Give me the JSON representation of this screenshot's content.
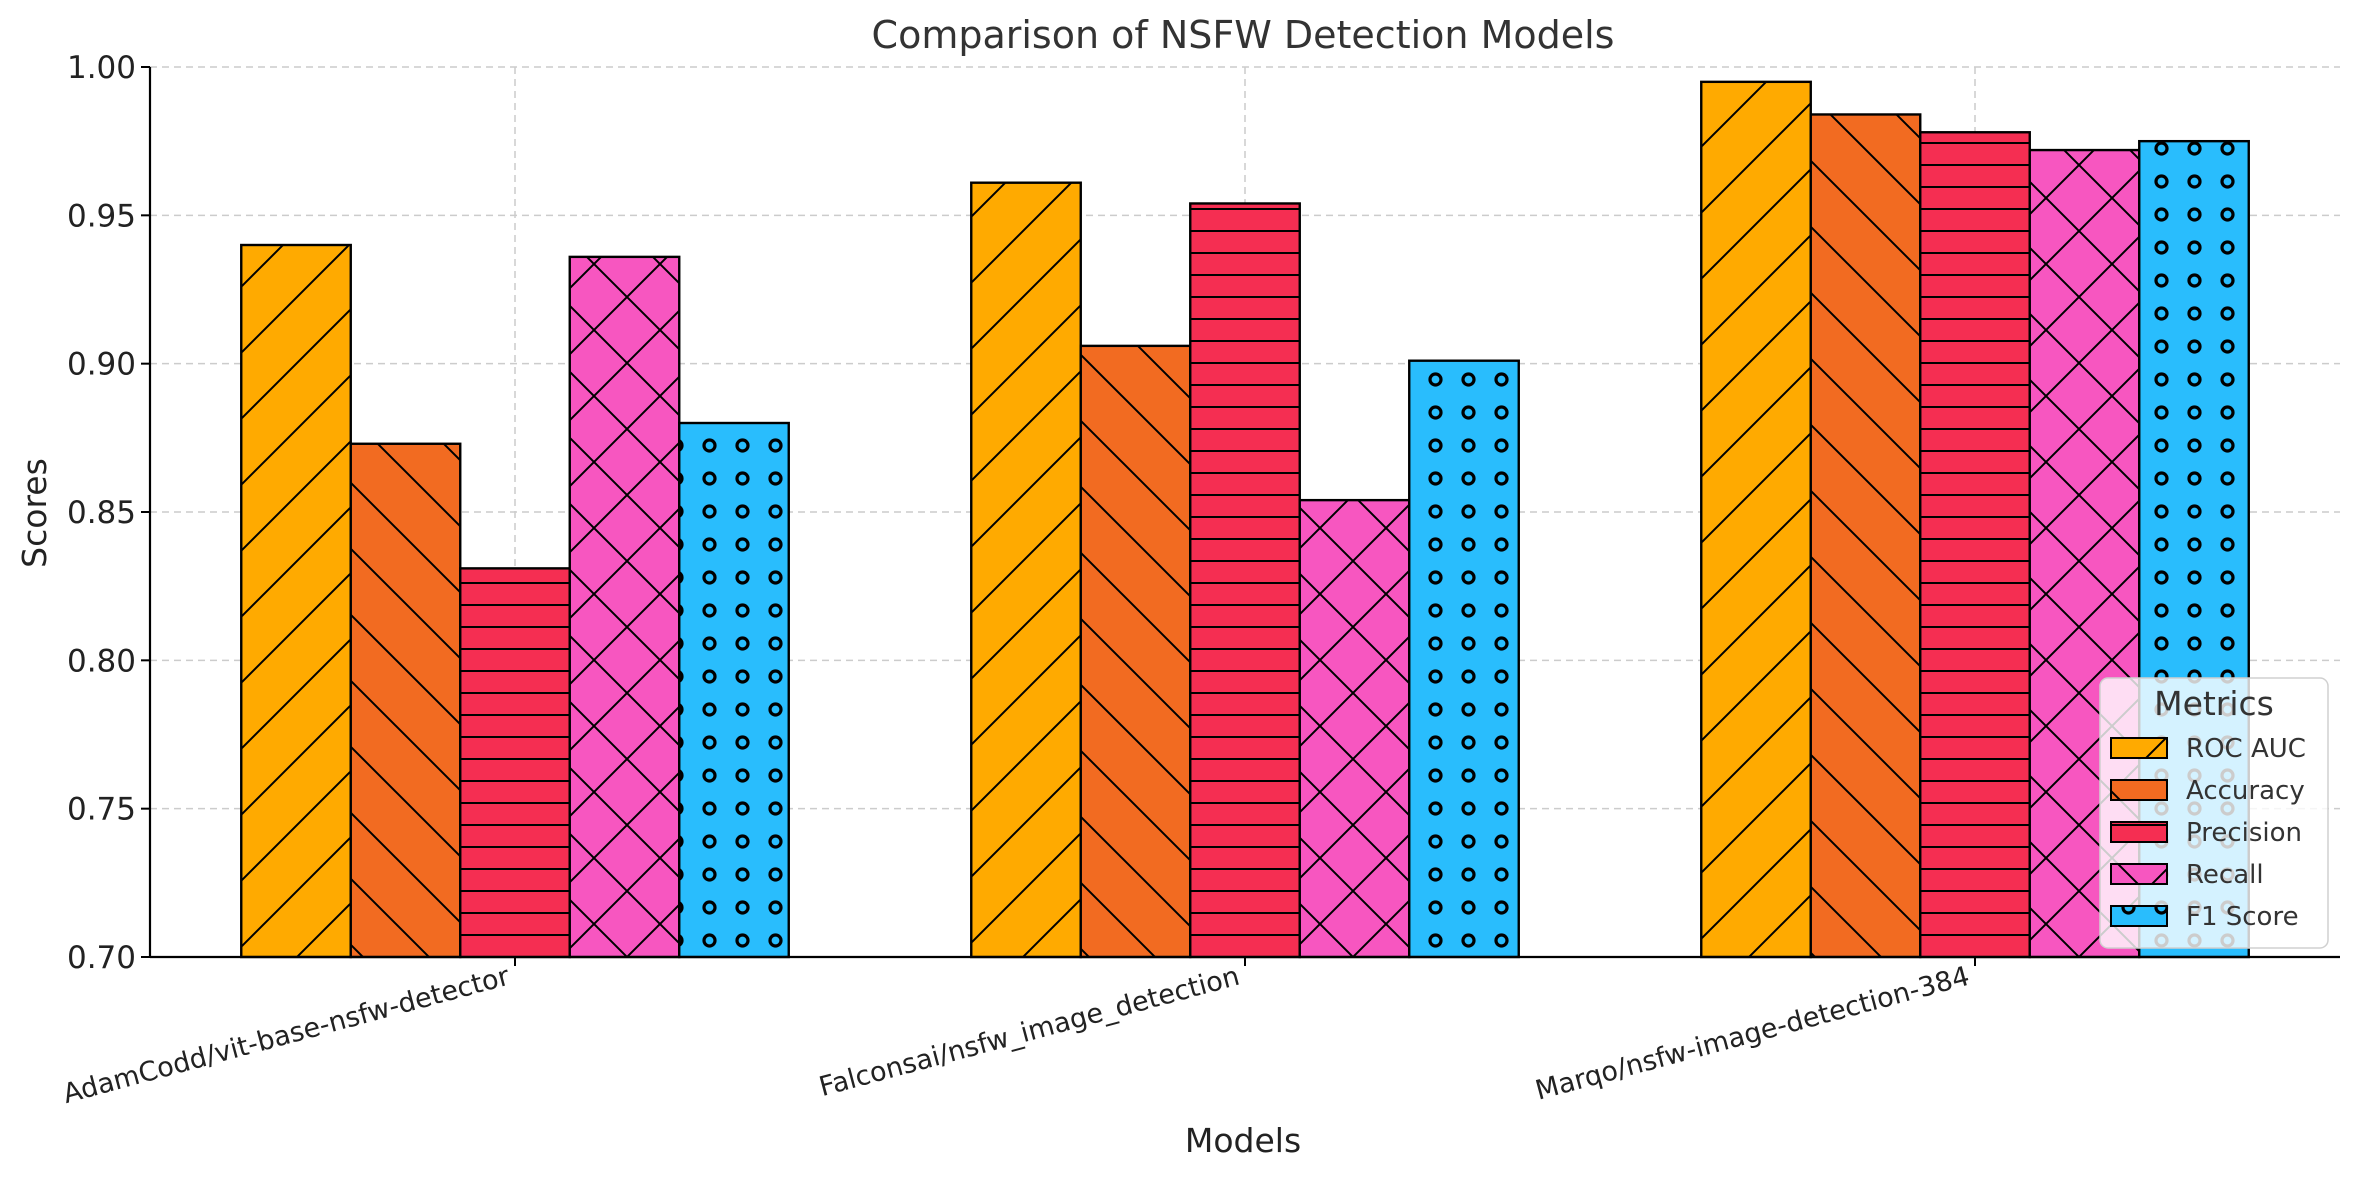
{
  "chart_data": {
    "type": "bar",
    "title": "Comparison of NSFW Detection Models",
    "xlabel": "Models",
    "ylabel": "Scores",
    "ylim": [
      0.7,
      1.0
    ],
    "yticks": [
      "0.70",
      "0.75",
      "0.80",
      "0.85",
      "0.90",
      "0.95",
      "1.00"
    ],
    "grid": true,
    "categories": [
      "AdamCodd/vit-base-nsfw-detector",
      "Falconsai/nsfw_image_detection",
      "Marqo/nsfw-image-detection-384"
    ],
    "series": [
      {
        "name": "ROC AUC",
        "values": [
          0.94,
          0.961,
          0.995
        ],
        "color": "#FFAA00",
        "pattern": "diag-right"
      },
      {
        "name": "Accuracy",
        "values": [
          0.873,
          0.906,
          0.984
        ],
        "color": "#F26B21",
        "pattern": "diag-left"
      },
      {
        "name": "Precision",
        "values": [
          0.831,
          0.954,
          0.978
        ],
        "color": "#F52E52",
        "pattern": "horizontal"
      },
      {
        "name": "Recall",
        "values": [
          0.936,
          0.854,
          0.972
        ],
        "color": "#F756C0",
        "pattern": "cross"
      },
      {
        "name": "F1 Score",
        "values": [
          0.88,
          0.901,
          0.975
        ],
        "color": "#29BDFD",
        "pattern": "circles"
      }
    ],
    "legend": {
      "title": "Metrics",
      "placement": "lower-right"
    }
  }
}
